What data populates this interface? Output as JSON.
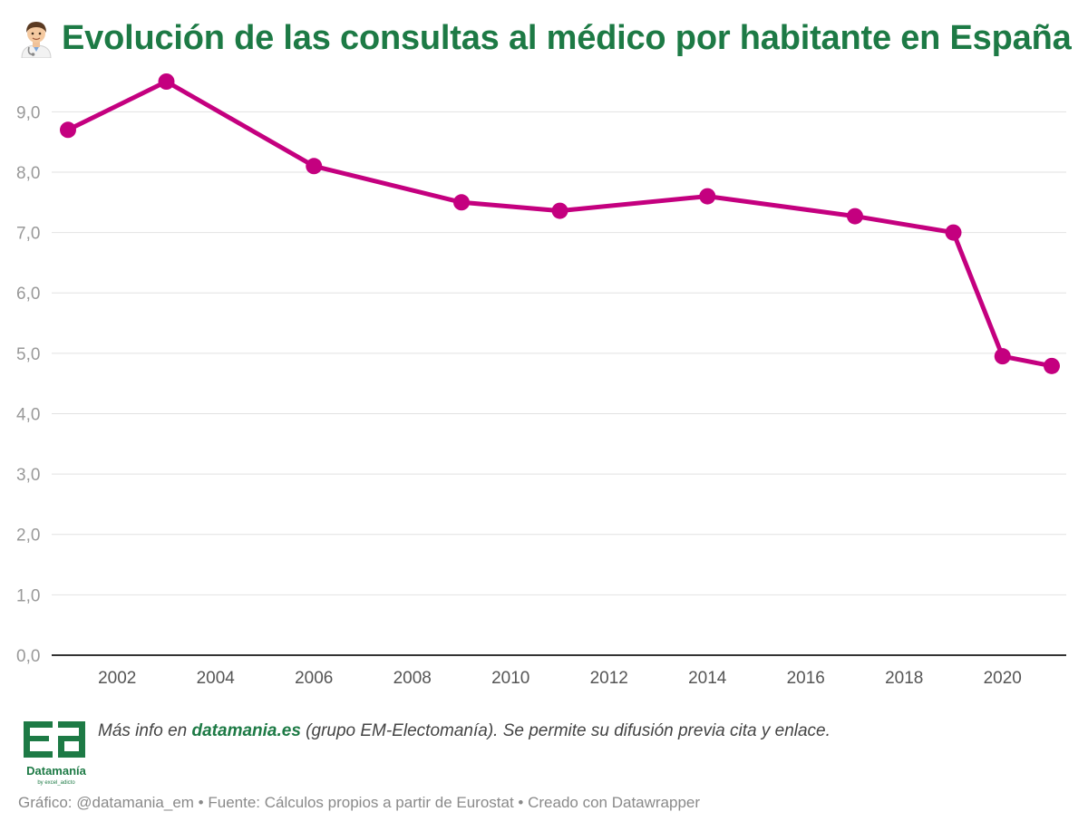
{
  "colors": {
    "title": "#1d7a45",
    "line": "#c4007f",
    "grid": "#e2e2e2",
    "axis": "#333333",
    "tick": "#999999",
    "xtick": "#555555"
  },
  "title": {
    "icon": "doctor-emoji",
    "text": "Evolución de las consultas al médico por habitante en España"
  },
  "chart_data": {
    "type": "line",
    "title": "Evolución de las consultas al médico por habitante en España",
    "xlabel": "",
    "ylabel": "",
    "x": [
      2001,
      2003,
      2006,
      2009,
      2011,
      2014,
      2017,
      2019,
      2020,
      2021
    ],
    "series": [
      {
        "name": "Consultas al médico por habitante",
        "values": [
          8.7,
          9.5,
          8.1,
          7.5,
          7.36,
          7.6,
          7.27,
          7.0,
          4.95,
          4.79
        ]
      }
    ],
    "xlim": [
      2001,
      2021
    ],
    "ylim": [
      0,
      9.5
    ],
    "yticks": [
      0,
      1,
      2,
      3,
      4,
      5,
      6,
      7,
      8,
      9
    ],
    "ytick_labels": [
      "0,0",
      "1,0",
      "2,0",
      "3,0",
      "4,0",
      "5,0",
      "6,0",
      "7,0",
      "8,0",
      "9,0"
    ],
    "xticks": [
      2002,
      2004,
      2006,
      2008,
      2010,
      2012,
      2014,
      2016,
      2018,
      2020
    ],
    "xtick_labels": [
      "2002",
      "2004",
      "2006",
      "2008",
      "2010",
      "2012",
      "2014",
      "2016",
      "2018",
      "2020"
    ],
    "grid": true
  },
  "footer": {
    "note_prefix": "Más info en ",
    "note_link": "datamania.es",
    "note_suffix": " (grupo EM-Electomanía). Se permite su difusión previa cita y enlace.",
    "logo_name": "Datamanía",
    "logo_sub": "by excel_adicto",
    "credits": "Gráfico: @datamania_em • Fuente: Cálculos propios a partir de Eurostat • Creado con Datawrapper"
  }
}
